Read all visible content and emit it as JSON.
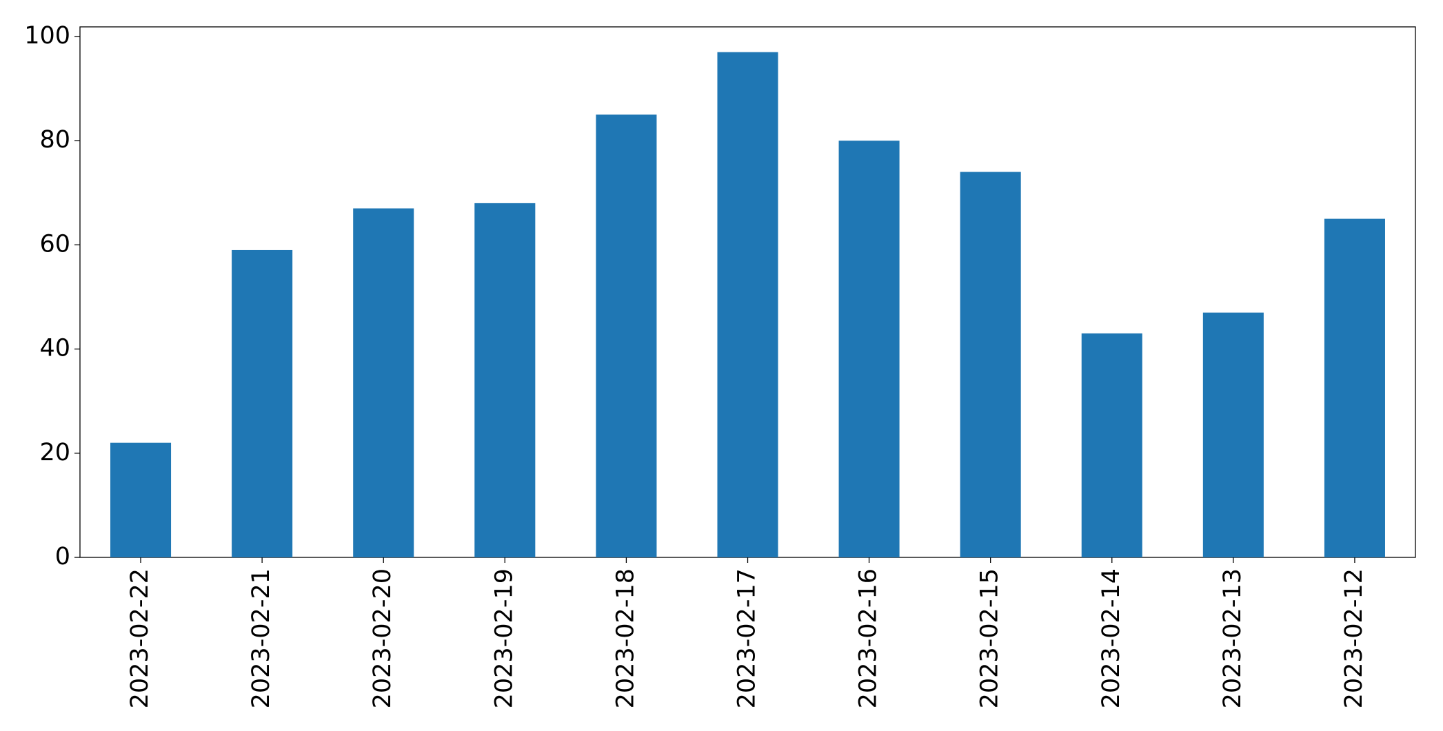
{
  "chart_data": {
    "type": "bar",
    "categories": [
      "2023-02-22",
      "2023-02-21",
      "2023-02-20",
      "2023-02-19",
      "2023-02-18",
      "2023-02-17",
      "2023-02-16",
      "2023-02-15",
      "2023-02-14",
      "2023-02-13",
      "2023-02-12"
    ],
    "values": [
      22,
      59,
      67,
      68,
      85,
      97,
      80,
      74,
      43,
      47,
      65
    ],
    "color": "#1f77b4",
    "ylim": [
      0,
      101.85
    ],
    "yticks": [
      0,
      20,
      40,
      60,
      80,
      100
    ],
    "grid": false
  }
}
